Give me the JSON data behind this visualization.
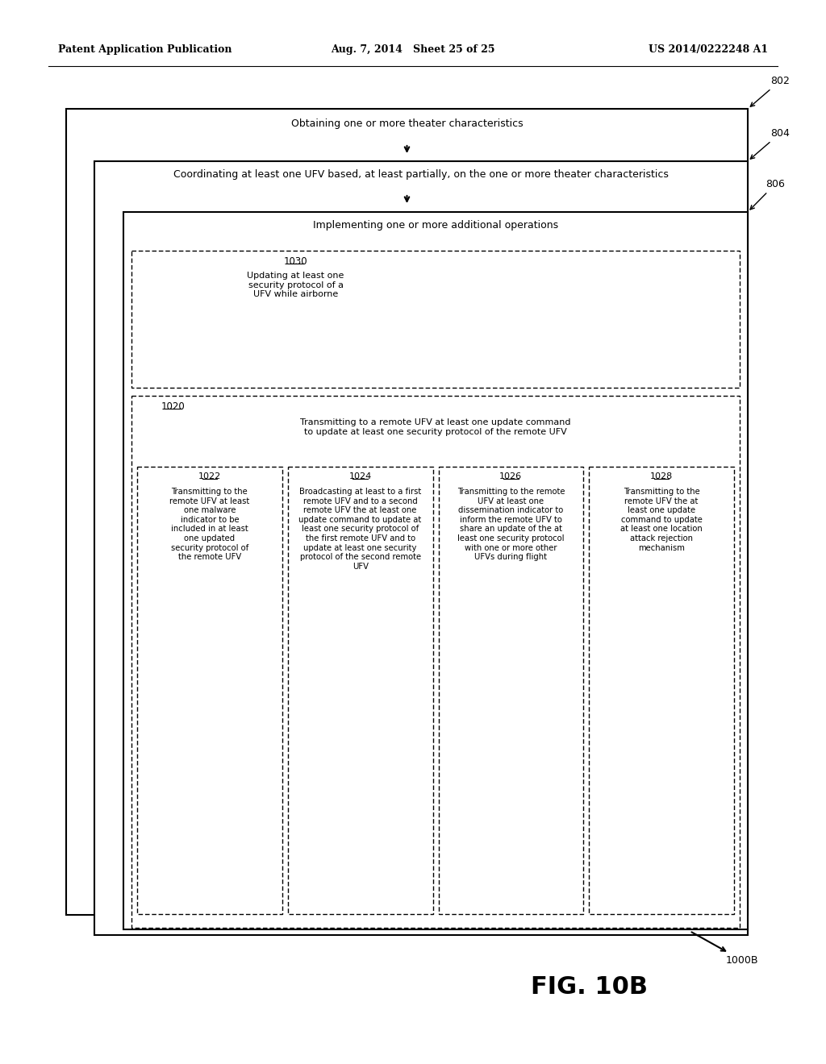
{
  "header_left": "Patent Application Publication",
  "header_center": "Aug. 7, 2014   Sheet 25 of 25",
  "header_right": "US 2014/0222248 A1",
  "fig_label": "FIG. 10B",
  "diagram_id": "1000B",
  "box802_text": "Obtaining one or more theater characteristics",
  "box804_text": "Coordinating at least one UFV based, at least partially, on the one or more theater characteristics",
  "box806_text": "Implementing one or more additional operations",
  "box1020_text": "Transmitting to a remote UFV at least one update command\nto update at least one security protocol of the remote UFV",
  "box1022_text": "Transmitting to the\nremote UFV at least\none malware\nindicator to be\nincluded in at least\none updated\nsecurity protocol of\nthe remote UFV",
  "box1024_text": "Broadcasting at least to a first\nremote UFV and to a second\nremote UFV the at least one\nupdate command to update at\nleast one security protocol of\nthe first remote UFV and to\nupdate at least one security\nprotocol of the second remote\nUFV",
  "box1026_text": "Transmitting to the remote\nUFV at least one\ndissemination indicator to\ninform the remote UFV to\nshare an update of the at\nleast one security protocol\nwith one or more other\nUFVs during flight",
  "box1028_text": "Transmitting to the\nremote UFV the at\nleast one update\ncommand to update\nat least one location\nattack rejection\nmechanism",
  "box1030_text": "Updating at least one\nsecurity protocol of a\nUFV while airborne",
  "bg_color": "#ffffff",
  "text_color": "#000000"
}
